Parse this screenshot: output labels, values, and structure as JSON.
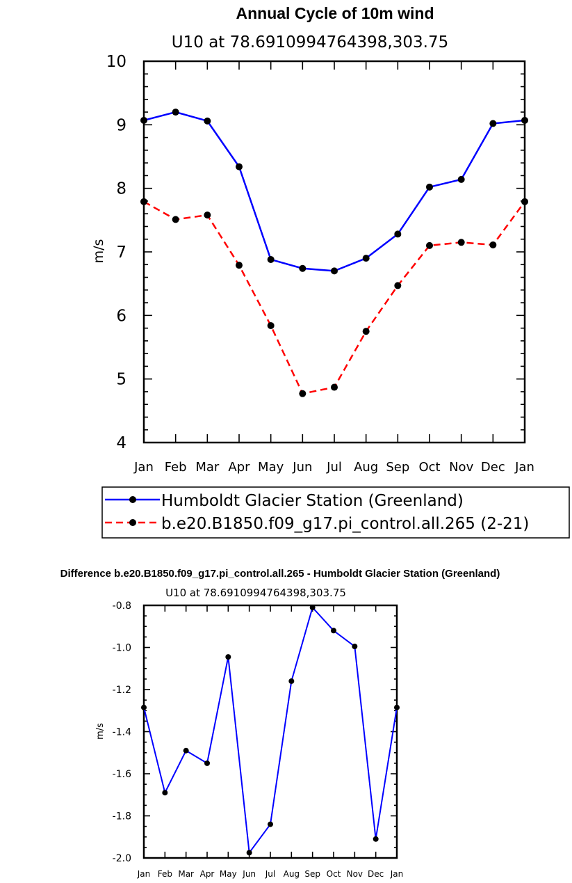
{
  "chart_data": [
    {
      "type": "line",
      "title": "Annual Cycle of 10m wind",
      "subtitle": "U10 at 78.6910994764398,303.75",
      "ylabel": "m/s",
      "ylim": [
        4,
        10
      ],
      "yticks": [
        "4",
        "5",
        "6",
        "7",
        "8",
        "9",
        "10"
      ],
      "categories": [
        "Jan",
        "Feb",
        "Mar",
        "Apr",
        "May",
        "Jun",
        "Jul",
        "Aug",
        "Sep",
        "Oct",
        "Nov",
        "Dec",
        "Jan"
      ],
      "series": [
        {
          "name": "Humboldt Glacier Station (Greenland)",
          "color": "#0000ff",
          "dash": "solid",
          "values": [
            9.07,
            9.2,
            9.06,
            8.34,
            6.88,
            6.74,
            6.7,
            6.9,
            7.28,
            8.02,
            8.14,
            9.02,
            9.07
          ]
        },
        {
          "name": "b.e20.B1850.f09_g17.pi_control.all.265 (2-21)",
          "color": "#ff0000",
          "dash": "dashed",
          "values": [
            7.79,
            7.51,
            7.58,
            6.79,
            5.84,
            4.77,
            4.87,
            5.75,
            6.47,
            7.1,
            7.15,
            7.11,
            7.79
          ]
        }
      ],
      "grid": false,
      "legend_position": "bottom"
    },
    {
      "type": "line",
      "title": "Difference b.e20.B1850.f09_g17.pi_control.all.265 - Humboldt Glacier Station (Greenland)",
      "subtitle": "U10 at 78.6910994764398,303.75",
      "ylabel": "m/s",
      "ylim": [
        -2.0,
        -0.8
      ],
      "yticks": [
        "-2.0",
        "-1.8",
        "-1.6",
        "-1.4",
        "-1.2",
        "-1.0",
        "-0.8"
      ],
      "categories": [
        "Jan",
        "Feb",
        "Mar",
        "Apr",
        "May",
        "Jun",
        "Jul",
        "Aug",
        "Sep",
        "Oct",
        "Nov",
        "Dec",
        "Jan"
      ],
      "series": [
        {
          "color": "#0000ff",
          "values": [
            -1.285,
            -1.69,
            -1.49,
            -1.55,
            -1.045,
            -1.975,
            -1.84,
            -1.16,
            -0.81,
            -0.92,
            -0.995,
            -1.91,
            -1.285
          ]
        }
      ],
      "grid": false
    }
  ]
}
